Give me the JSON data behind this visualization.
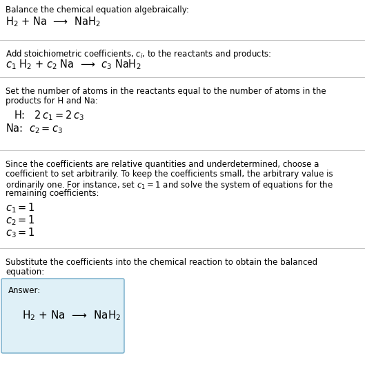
{
  "bg_color": "#ffffff",
  "line_color": "#c0c0c0",
  "text_color": "#000000",
  "title": "Balance the chemical equation algebraically:",
  "eq1": "H$_2$ + Na  ⟶  NaH$_2$",
  "section2_title": "Add stoichiometric coefficients, $c_i$, to the reactants and products:",
  "eq2": "$c_1$ H$_2$ + $c_2$ Na  ⟶  $c_3$ NaH$_2$",
  "section3_line1": "Set the number of atoms in the reactants equal to the number of atoms in the",
  "section3_line2": "products for H and Na:",
  "eq3_H": "H:   $2\\,c_1 = 2\\,c_3$",
  "eq3_Na": "Na:  $c_2 = c_3$",
  "section4_line1": "Since the coefficients are relative quantities and underdetermined, choose a",
  "section4_line2": "coefficient to set arbitrarily. To keep the coefficients small, the arbitrary value is",
  "section4_line3": "ordinarily one. For instance, set $c_1 = 1$ and solve the system of equations for the",
  "section4_line4": "remaining coefficients:",
  "coeff1": "$c_1 = 1$",
  "coeff2": "$c_2 = 1$",
  "coeff3": "$c_3 = 1$",
  "section5_line1": "Substitute the coefficients into the chemical reaction to obtain the balanced",
  "section5_line2": "equation:",
  "answer_label": "Answer:",
  "answer_eq": "H$_2$ + Na  ⟶  NaH$_2$",
  "answer_box_color": "#dff0f7",
  "answer_box_edge": "#70aac8"
}
